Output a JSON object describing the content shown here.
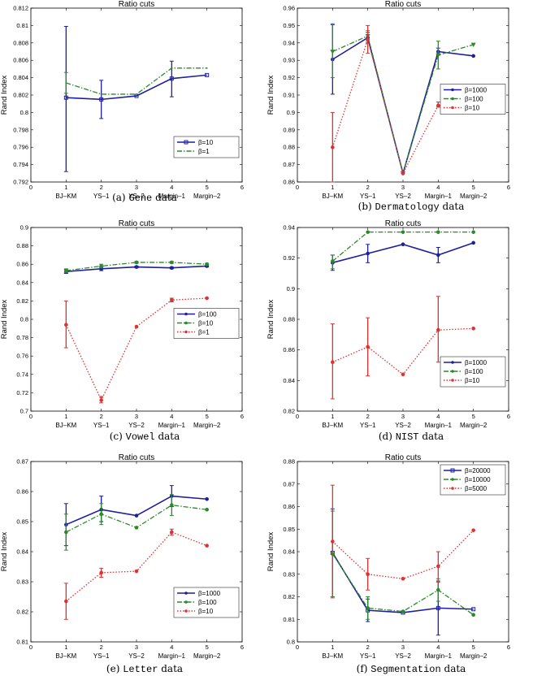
{
  "chart_data": [
    {
      "id": "a",
      "type": "line",
      "title": "Ratio cuts",
      "ylabel": "Rand Index",
      "xlabel": "",
      "caption": {
        "prefix": "(a) ",
        "name": "Gene",
        "suffix": " data"
      },
      "xlim": [
        0,
        6
      ],
      "ylim": [
        0.792,
        0.812
      ],
      "xticks": [
        "0",
        "1",
        "2",
        "3",
        "4",
        "5",
        "6"
      ],
      "yticks": [
        "0.792",
        "0.794",
        "0.796",
        "0.798",
        "0.8",
        "0.802",
        "0.804",
        "0.806",
        "0.808",
        "0.81",
        "0.812"
      ],
      "categories": [
        "BJ–KM",
        "YS–1",
        "YS–2",
        "Margin–1",
        "Margin–2"
      ],
      "legend_position": "lower-right",
      "series": [
        {
          "name": "β=10",
          "color": "#1f1f9e",
          "style": "solid",
          "marker": "square",
          "values": [
            0.8017,
            0.8015,
            0.8019,
            0.8039,
            0.8043
          ],
          "err_lo": [
            0.7932,
            0.7993,
            0.8019,
            0.8018,
            0.8043
          ],
          "err_hi": [
            0.8099,
            0.8037,
            0.8019,
            0.8059,
            0.8043
          ]
        },
        {
          "name": "β=1",
          "color": "#2a8a2a",
          "style": "dashdot",
          "marker": "none",
          "values": [
            0.8034,
            0.8021,
            0.8021,
            0.8051,
            0.8051
          ],
          "err_lo": [
            0.8022,
            0.8021,
            0.8021,
            0.8051,
            0.8051
          ],
          "err_hi": [
            0.8046,
            0.8021,
            0.8021,
            0.8051,
            0.8051
          ]
        }
      ]
    },
    {
      "id": "b",
      "type": "line",
      "title": "Ratio cuts",
      "ylabel": "Rand Index",
      "xlabel": "",
      "caption": {
        "prefix": "(b) ",
        "name": "Dermatology",
        "suffix": " data"
      },
      "xlim": [
        0,
        6
      ],
      "ylim": [
        0.86,
        0.96
      ],
      "xticks": [
        "0",
        "1",
        "2",
        "3",
        "4",
        "5",
        "6"
      ],
      "yticks": [
        "0.86",
        "0.87",
        "0.88",
        "0.89",
        "0.9",
        "0.91",
        "0.92",
        "0.93",
        "0.94",
        "0.95",
        "0.96"
      ],
      "categories": [
        "BJ–KM",
        "YS–1",
        "YS–2",
        "Margin–1",
        "Margin–2"
      ],
      "legend_position": "center-right",
      "series": [
        {
          "name": "β=1000",
          "color": "#1f1f9e",
          "style": "solid",
          "marker": "star",
          "values": [
            0.9305,
            0.943,
            0.865,
            0.935,
            0.9325
          ],
          "err_lo": [
            0.9105,
            0.94,
            0.865,
            0.933,
            0.9325
          ],
          "err_hi": [
            0.9505,
            0.946,
            0.865,
            0.937,
            0.9325
          ]
        },
        {
          "name": "β=100",
          "color": "#2a8a2a",
          "style": "dashdot",
          "marker": "tri",
          "values": [
            0.935,
            0.944,
            0.865,
            0.933,
            0.939
          ],
          "err_lo": [
            0.92,
            0.941,
            0.865,
            0.925,
            0.939
          ],
          "err_hi": [
            0.951,
            0.947,
            0.865,
            0.941,
            0.939
          ]
        },
        {
          "name": "β=10",
          "color": "#e03030",
          "style": "dotted",
          "marker": "star",
          "values": [
            0.88,
            0.942,
            0.865,
            0.904,
            0.905
          ],
          "err_lo": [
            0.86,
            0.934,
            0.865,
            0.903,
            0.905
          ],
          "err_hi": [
            0.9,
            0.95,
            0.865,
            0.906,
            0.905
          ]
        }
      ]
    },
    {
      "id": "c",
      "type": "line",
      "title": "Ratio cuts",
      "ylabel": "Rand Index",
      "xlabel": "",
      "caption": {
        "prefix": "(c) ",
        "name": "Vowel",
        "suffix": " data"
      },
      "xlim": [
        0,
        6
      ],
      "ylim": [
        0.7,
        0.9
      ],
      "xticks": [
        "0",
        "1",
        "2",
        "3",
        "4",
        "5",
        "6"
      ],
      "yticks": [
        "0.7",
        "0.72",
        "0.74",
        "0.76",
        "0.78",
        "0.8",
        "0.82",
        "0.84",
        "0.86",
        "0.88",
        "0.9"
      ],
      "categories": [
        "BJ–KM",
        "YS–1",
        "YS–2",
        "Margin–1",
        "Margin–2"
      ],
      "legend_position": "center-right",
      "series": [
        {
          "name": "β=100",
          "color": "#1f1f9e",
          "style": "solid",
          "marker": "star",
          "values": [
            0.852,
            0.855,
            0.857,
            0.856,
            0.858
          ],
          "err_lo": [
            0.85,
            0.853,
            0.856,
            0.855,
            0.857
          ],
          "err_hi": [
            0.854,
            0.857,
            0.858,
            0.857,
            0.859
          ]
        },
        {
          "name": "β=10",
          "color": "#2a8a2a",
          "style": "dashdot",
          "marker": "star",
          "values": [
            0.853,
            0.858,
            0.862,
            0.862,
            0.86
          ],
          "err_lo": [
            0.851,
            0.856,
            0.861,
            0.861,
            0.859
          ],
          "err_hi": [
            0.855,
            0.86,
            0.863,
            0.863,
            0.861
          ]
        },
        {
          "name": "β=1",
          "color": "#e03030",
          "style": "dotted",
          "marker": "star",
          "values": [
            0.794,
            0.712,
            0.792,
            0.821,
            0.823
          ],
          "err_lo": [
            0.769,
            0.709,
            0.792,
            0.819,
            0.823
          ],
          "err_hi": [
            0.82,
            0.716,
            0.792,
            0.823,
            0.823
          ]
        }
      ]
    },
    {
      "id": "d",
      "type": "line",
      "title": "Ratio cuts",
      "ylabel": "Rand Index",
      "xlabel": "",
      "caption": {
        "prefix": "(d) ",
        "name": "NIST",
        "suffix": " data"
      },
      "xlim": [
        0,
        6
      ],
      "ylim": [
        0.82,
        0.94
      ],
      "xticks": [
        "0",
        "1",
        "2",
        "3",
        "4",
        "5",
        "6"
      ],
      "yticks": [
        "0.82",
        "0.84",
        "0.86",
        "0.88",
        "0.9",
        "0.92",
        "0.94"
      ],
      "categories": [
        "BJ–KM",
        "YS–1",
        "YS–2",
        "Margin–1",
        "Margin–2"
      ],
      "legend_position": "lower-right",
      "series": [
        {
          "name": "β=1000",
          "color": "#1f1f9e",
          "style": "solid",
          "marker": "star",
          "values": [
            0.917,
            0.923,
            0.929,
            0.922,
            0.93
          ],
          "err_lo": [
            0.912,
            0.917,
            0.929,
            0.917,
            0.93
          ],
          "err_hi": [
            0.922,
            0.929,
            0.929,
            0.927,
            0.93
          ]
        },
        {
          "name": "β=100",
          "color": "#2a8a2a",
          "style": "dashdot",
          "marker": "star",
          "values": [
            0.918,
            0.937,
            0.937,
            0.937,
            0.937
          ],
          "err_lo": [
            0.913,
            0.937,
            0.937,
            0.937,
            0.937
          ],
          "err_hi": [
            0.922,
            0.937,
            0.937,
            0.937,
            0.937
          ]
        },
        {
          "name": "β=10",
          "color": "#e03030",
          "style": "dotted",
          "marker": "star",
          "values": [
            0.852,
            0.862,
            0.844,
            0.873,
            0.874
          ],
          "err_lo": [
            0.828,
            0.843,
            0.844,
            0.852,
            0.874
          ],
          "err_hi": [
            0.877,
            0.881,
            0.844,
            0.895,
            0.874
          ]
        }
      ]
    },
    {
      "id": "e",
      "type": "line",
      "title": "Ratio cuts",
      "ylabel": "Rand Index",
      "xlabel": "",
      "caption": {
        "prefix": "(e) ",
        "name": "Letter",
        "suffix": " data"
      },
      "xlim": [
        0,
        6
      ],
      "ylim": [
        0.81,
        0.87
      ],
      "xticks": [
        "0",
        "1",
        "2",
        "3",
        "4",
        "5",
        "6"
      ],
      "yticks": [
        "0.81",
        "0.82",
        "0.83",
        "0.84",
        "0.85",
        "0.86",
        "0.87"
      ],
      "ytick_display": [
        "0.81",
        "0.82",
        "0.83",
        "0.84",
        "0.85",
        "0.86",
        "0.87"
      ],
      "categories": [
        "BJ–KM",
        "YS–1",
        "YS–2",
        "Margin–1",
        "Margin–2"
      ],
      "legend_position": "lower-right",
      "series": [
        {
          "name": "β=1000",
          "color": "#1f1f9e",
          "style": "solid",
          "marker": "star",
          "values": [
            0.849,
            0.854,
            0.852,
            0.8585,
            0.8575
          ],
          "err_lo": [
            0.842,
            0.85,
            0.852,
            0.855,
            0.8575
          ],
          "err_hi": [
            0.856,
            0.8585,
            0.852,
            0.862,
            0.8575
          ]
        },
        {
          "name": "β=100",
          "color": "#2a8a2a",
          "style": "dashdot",
          "marker": "star",
          "values": [
            0.8465,
            0.8525,
            0.848,
            0.8555,
            0.854
          ],
          "err_lo": [
            0.8405,
            0.849,
            0.848,
            0.852,
            0.854
          ],
          "err_hi": [
            0.8525,
            0.856,
            0.848,
            0.859,
            0.854
          ]
        },
        {
          "name": "β=10",
          "color": "#e03030",
          "style": "dotted",
          "marker": "star",
          "values": [
            0.8235,
            0.833,
            0.8335,
            0.8465,
            0.842
          ],
          "err_lo": [
            0.8175,
            0.8315,
            0.8335,
            0.8455,
            0.842
          ],
          "err_hi": [
            0.8295,
            0.8345,
            0.8335,
            0.8475,
            0.842
          ]
        }
      ]
    },
    {
      "id": "f",
      "type": "line",
      "title": "Ratio cuts",
      "ylabel": "Rand Index",
      "xlabel": "",
      "caption": {
        "prefix": "(f) ",
        "name": "Segmentation",
        "suffix": " data"
      },
      "xlim": [
        0,
        6
      ],
      "ylim": [
        0.8,
        0.88
      ],
      "xticks": [
        "0",
        "1",
        "2",
        "3",
        "4",
        "5",
        "6"
      ],
      "yticks": [
        "0.8",
        "0.81",
        "0.82",
        "0.83",
        "0.84",
        "0.85",
        "0.86",
        "0.87",
        "0.88"
      ],
      "categories": [
        "BJ–KM",
        "YS–1",
        "YS–2",
        "Margin–1",
        "Margin–2"
      ],
      "legend_position": "top-right",
      "series": [
        {
          "name": "β=20000",
          "color": "#1f1f9e",
          "style": "solid",
          "marker": "square",
          "values": [
            0.8395,
            0.814,
            0.813,
            0.815,
            0.8145
          ],
          "err_lo": [
            0.82,
            0.809,
            0.813,
            0.803,
            0.8145
          ],
          "err_hi": [
            0.859,
            0.819,
            0.813,
            0.827,
            0.8145
          ]
        },
        {
          "name": "β=10000",
          "color": "#2a8a2a",
          "style": "dashdot",
          "marker": "star",
          "values": [
            0.839,
            0.815,
            0.8135,
            0.823,
            0.812
          ],
          "err_lo": [
            0.82,
            0.81,
            0.8135,
            0.818,
            0.812
          ],
          "err_hi": [
            0.858,
            0.82,
            0.8135,
            0.828,
            0.812
          ]
        },
        {
          "name": "β=5000",
          "color": "#e03030",
          "style": "dotted",
          "marker": "star",
          "values": [
            0.8445,
            0.83,
            0.828,
            0.8335,
            0.8495
          ],
          "err_lo": [
            0.8195,
            0.823,
            0.828,
            0.8265,
            0.8495
          ],
          "err_hi": [
            0.8695,
            0.837,
            0.828,
            0.84,
            0.8495
          ]
        }
      ]
    }
  ]
}
